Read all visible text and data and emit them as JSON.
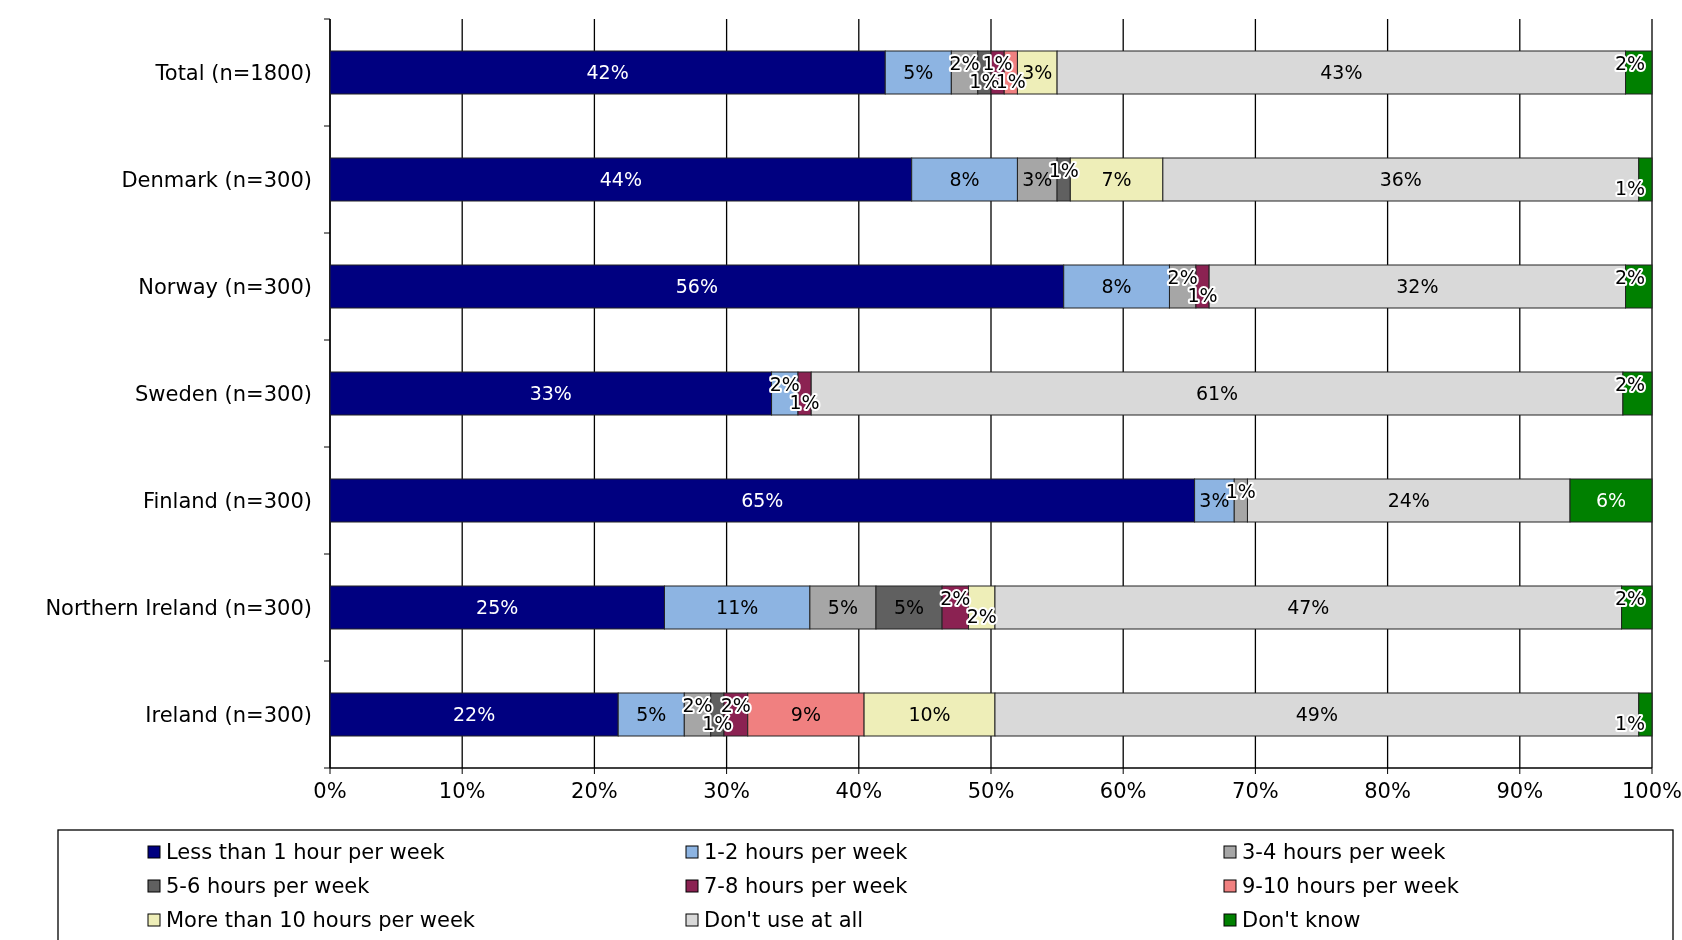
{
  "chart_data": {
    "type": "bar",
    "orientation": "horizontal",
    "stacked": true,
    "legend": "bottom",
    "grid": "x",
    "categories": [
      "Total (n=1800)",
      "Denmark (n=300)",
      "Norway (n=300)",
      "Sweden (n=300)",
      "Finland (n=300)",
      "Northern Ireland (n=300)",
      "Ireland (n=300)"
    ],
    "xlim": [
      0,
      100
    ],
    "xticks": [
      {
        "value": 0,
        "label": "0%"
      },
      {
        "value": 10,
        "label": "10%"
      },
      {
        "value": 20,
        "label": "20%"
      },
      {
        "value": 30,
        "label": "30%"
      },
      {
        "value": 40,
        "label": "40%"
      },
      {
        "value": 50,
        "label": "50%"
      },
      {
        "value": 60,
        "label": "60%"
      },
      {
        "value": 70,
        "label": "70%"
      },
      {
        "value": 80,
        "label": "80%"
      },
      {
        "value": 90,
        "label": "90%"
      },
      {
        "value": 100,
        "label": "100%"
      }
    ],
    "series": [
      {
        "name": "Less than 1 hour per week",
        "color": "#000080",
        "values": [
          42,
          44,
          55.5,
          33.4,
          65.4,
          25.3,
          21.8
        ],
        "value_labels": [
          "42%",
          "44%",
          "56%",
          "33%",
          "65%",
          "25%",
          "22%"
        ]
      },
      {
        "name": "1-2 hours per week",
        "color": "#8db4e2",
        "values": [
          5,
          8,
          8,
          2,
          3,
          11,
          5
        ],
        "value_labels": [
          "5%",
          "8%",
          "8%",
          "2%",
          "3%",
          "11%",
          "5%"
        ]
      },
      {
        "name": "3-4 hours per week",
        "color": "#a6a6a6",
        "values": [
          2,
          3,
          2,
          0,
          1,
          5,
          2
        ],
        "value_labels": [
          "2%",
          "3%",
          "2%",
          null,
          "1%",
          "5%",
          "2%"
        ]
      },
      {
        "name": "5-6 hours per week",
        "color": "#606060",
        "values": [
          1,
          1,
          0,
          0,
          0,
          5,
          1
        ],
        "value_labels": [
          "1%",
          "1%",
          null,
          null,
          null,
          "5%",
          "1%"
        ]
      },
      {
        "name": "7-8 hours per week",
        "color": "#8b2252",
        "values": [
          1,
          0,
          1,
          1,
          0,
          2,
          1.8
        ],
        "value_labels": [
          "1%",
          null,
          "1%",
          "1%",
          null,
          "2%",
          "2%"
        ]
      },
      {
        "name": "9-10 hours per week",
        "color": "#f08080",
        "values": [
          1,
          0,
          0,
          0,
          0,
          0,
          8.8
        ],
        "value_labels": [
          "1%",
          null,
          null,
          null,
          null,
          null,
          "9%"
        ]
      },
      {
        "name": "More than 10 hours per week",
        "color": "#eeeeb8",
        "values": [
          3,
          7,
          0,
          0,
          0,
          2,
          9.9
        ],
        "value_labels": [
          "3%",
          "7%",
          null,
          null,
          null,
          "2%",
          "10%"
        ]
      },
      {
        "name": "Don't use at all",
        "color": "#d9d9d9",
        "values": [
          43,
          36,
          31.5,
          61.4,
          24.4,
          47.4,
          48.7
        ],
        "value_labels": [
          "43%",
          "36%",
          "32%",
          "61%",
          "24%",
          "47%",
          "49%"
        ]
      },
      {
        "name": "Don't know",
        "color": "#008000",
        "values": [
          2,
          1,
          2,
          2.2,
          6.2,
          2.3,
          1
        ],
        "value_labels": [
          "2%",
          "1%",
          "2%",
          "2%",
          "6%",
          "2%",
          "1%"
        ]
      }
    ]
  }
}
